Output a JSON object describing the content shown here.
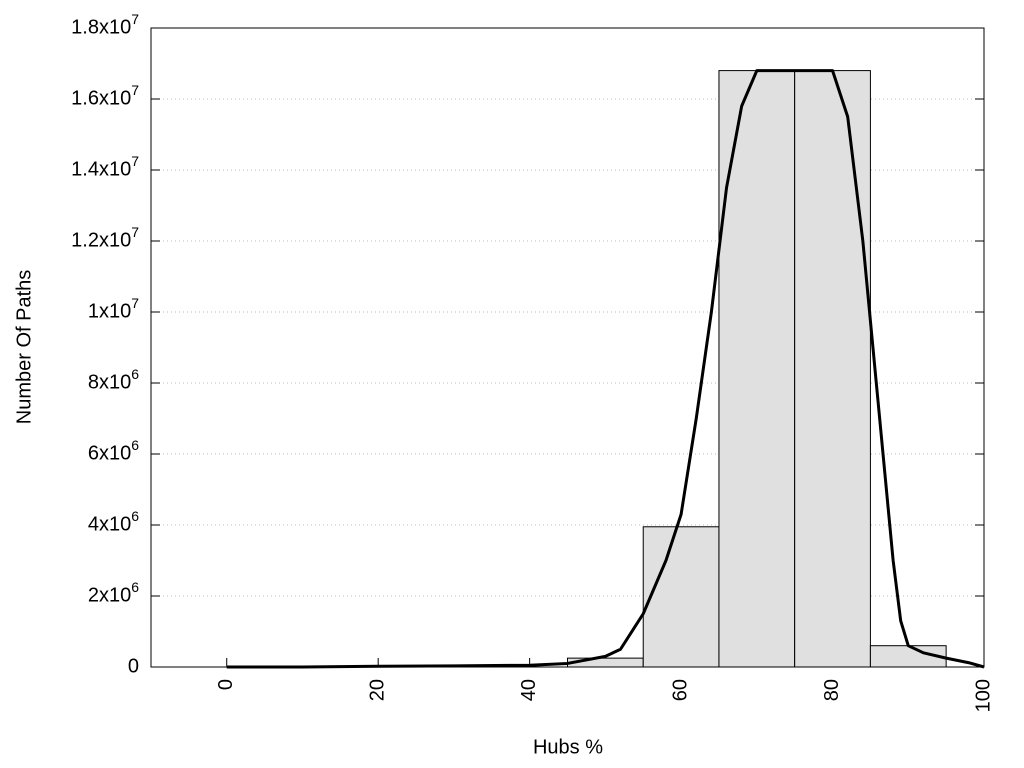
{
  "chart_data": {
    "type": "histogram",
    "xlabel": "Hubs %",
    "ylabel": "Number Of Paths",
    "bins": [
      45,
      55,
      65,
      75,
      85,
      95
    ],
    "values": [
      250000,
      3950000,
      16800000,
      16800000,
      600000
    ],
    "color": "#e0e0e0",
    "curve": {
      "color": "#000000",
      "x": [
        0,
        10,
        20,
        30,
        40,
        45,
        50,
        52,
        55,
        58,
        60,
        62,
        64,
        66,
        68,
        70,
        72,
        75,
        78,
        80,
        82,
        84,
        86,
        88,
        89,
        90,
        92,
        95,
        98,
        100
      ],
      "values": [
        0,
        0,
        20000,
        30000,
        50000,
        100000,
        300000,
        500000,
        1500000,
        3000000,
        4300000,
        7000000,
        10000000,
        13500000,
        15800000,
        16800000,
        16800000,
        16800000,
        16800000,
        16800000,
        15500000,
        12000000,
        7500000,
        3000000,
        1300000,
        600000,
        400000,
        250000,
        120000,
        0
      ]
    },
    "xlim": [
      -10,
      100
    ],
    "xticks": [
      0,
      20,
      40,
      60,
      80,
      100
    ],
    "ylim": [
      0,
      18000000
    ],
    "yticks": [
      0,
      {
        "value": 2000000,
        "label": "2x10^6"
      },
      {
        "value": 4000000,
        "label": "4x10^6"
      },
      {
        "value": 6000000,
        "label": "6x10^6"
      },
      {
        "value": 8000000,
        "label": "8x10^6"
      },
      {
        "value": 10000000,
        "label": "1x10^7"
      },
      {
        "value": 12000000,
        "label": "1.2x10^7"
      },
      {
        "value": 14000000,
        "label": "1.4x10^7"
      },
      {
        "value": 16000000,
        "label": "1.6x10^7"
      },
      {
        "value": 18000000,
        "label": "1.8x10^7"
      }
    ],
    "grid": true
  }
}
